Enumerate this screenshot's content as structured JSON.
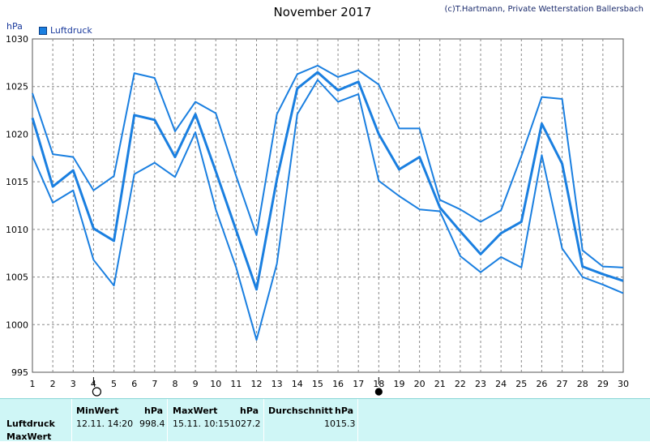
{
  "header": {
    "title": "November 2017",
    "copyright": "(c)T.Hartmann, Private Wetterstation Ballersbach",
    "y_unit": "hPa"
  },
  "legend": {
    "label": "Luftdruck",
    "color": "#1a7fe0"
  },
  "chart_data": {
    "type": "line",
    "title": "November 2017",
    "ylabel": "hPa",
    "xlabel": "",
    "x": [
      1,
      2,
      3,
      4,
      5,
      6,
      7,
      8,
      9,
      10,
      11,
      12,
      13,
      14,
      15,
      16,
      17,
      18,
      19,
      20,
      21,
      22,
      23,
      24,
      25,
      26,
      27,
      28,
      29,
      30
    ],
    "xlim": [
      1,
      30
    ],
    "ylim": [
      995,
      1030
    ],
    "yticks": [
      995,
      1000,
      1005,
      1010,
      1015,
      1020,
      1025,
      1030
    ],
    "grid": true,
    "legend": "top-left",
    "color": "#1a7fe0",
    "series": [
      {
        "name": "Luftdruck",
        "role": "mean",
        "values": [
          1021.7,
          1014.5,
          1016.2,
          1010.1,
          1008.8,
          1022.0,
          1021.5,
          1017.6,
          1022.1,
          1016.1,
          1009.9,
          1003.7,
          1015.3,
          1024.8,
          1026.5,
          1024.6,
          1025.5,
          1020.0,
          1016.3,
          1017.6,
          1012.3,
          1009.8,
          1007.4,
          1009.6,
          1010.8,
          1021.1,
          1016.9,
          1006.1,
          1005.3,
          1004.6
        ]
      },
      {
        "role": "max",
        "values": [
          1024.3,
          1017.9,
          1017.6,
          1014.1,
          1015.6,
          1026.4,
          1025.9,
          1020.3,
          1023.4,
          1022.2,
          1015.6,
          1009.4,
          1022.1,
          1026.3,
          1027.2,
          1026.0,
          1026.7,
          1025.2,
          1020.6,
          1020.6,
          1013.1,
          1012.1,
          1010.8,
          1012.0,
          1017.7,
          1023.9,
          1023.7,
          1007.8,
          1006.1,
          1006.0
        ]
      },
      {
        "role": "min",
        "values": [
          1017.7,
          1012.8,
          1014.1,
          1006.8,
          1004.1,
          1015.8,
          1017.0,
          1015.5,
          1020.2,
          1012.1,
          1006.0,
          998.4,
          1006.4,
          1022.1,
          1025.7,
          1023.4,
          1024.2,
          1015.1,
          1013.5,
          1012.1,
          1011.9,
          1007.2,
          1005.5,
          1007.1,
          1006.0,
          1017.8,
          1008.0,
          1005.0,
          1004.2,
          1003.3
        ]
      }
    ],
    "markers": [
      {
        "day": 4,
        "type": "moon-open",
        "name": "full-moon-marker"
      },
      {
        "day": 18,
        "type": "moon-filled",
        "name": "new-moon-marker"
      }
    ]
  },
  "stats": {
    "row_label": "Luftdruck",
    "row_label2": "MaxWert",
    "min": {
      "header": "MinWert",
      "unit": "hPa",
      "datetime": "12.11.  14:20",
      "value": "998.4"
    },
    "max": {
      "header": "MaxWert",
      "unit": "hPa",
      "datetime": "15.11.  10:15",
      "value": "1027.2"
    },
    "avg": {
      "header": "Durchschnitt",
      "unit": "hPa",
      "value": "1015.3"
    }
  }
}
